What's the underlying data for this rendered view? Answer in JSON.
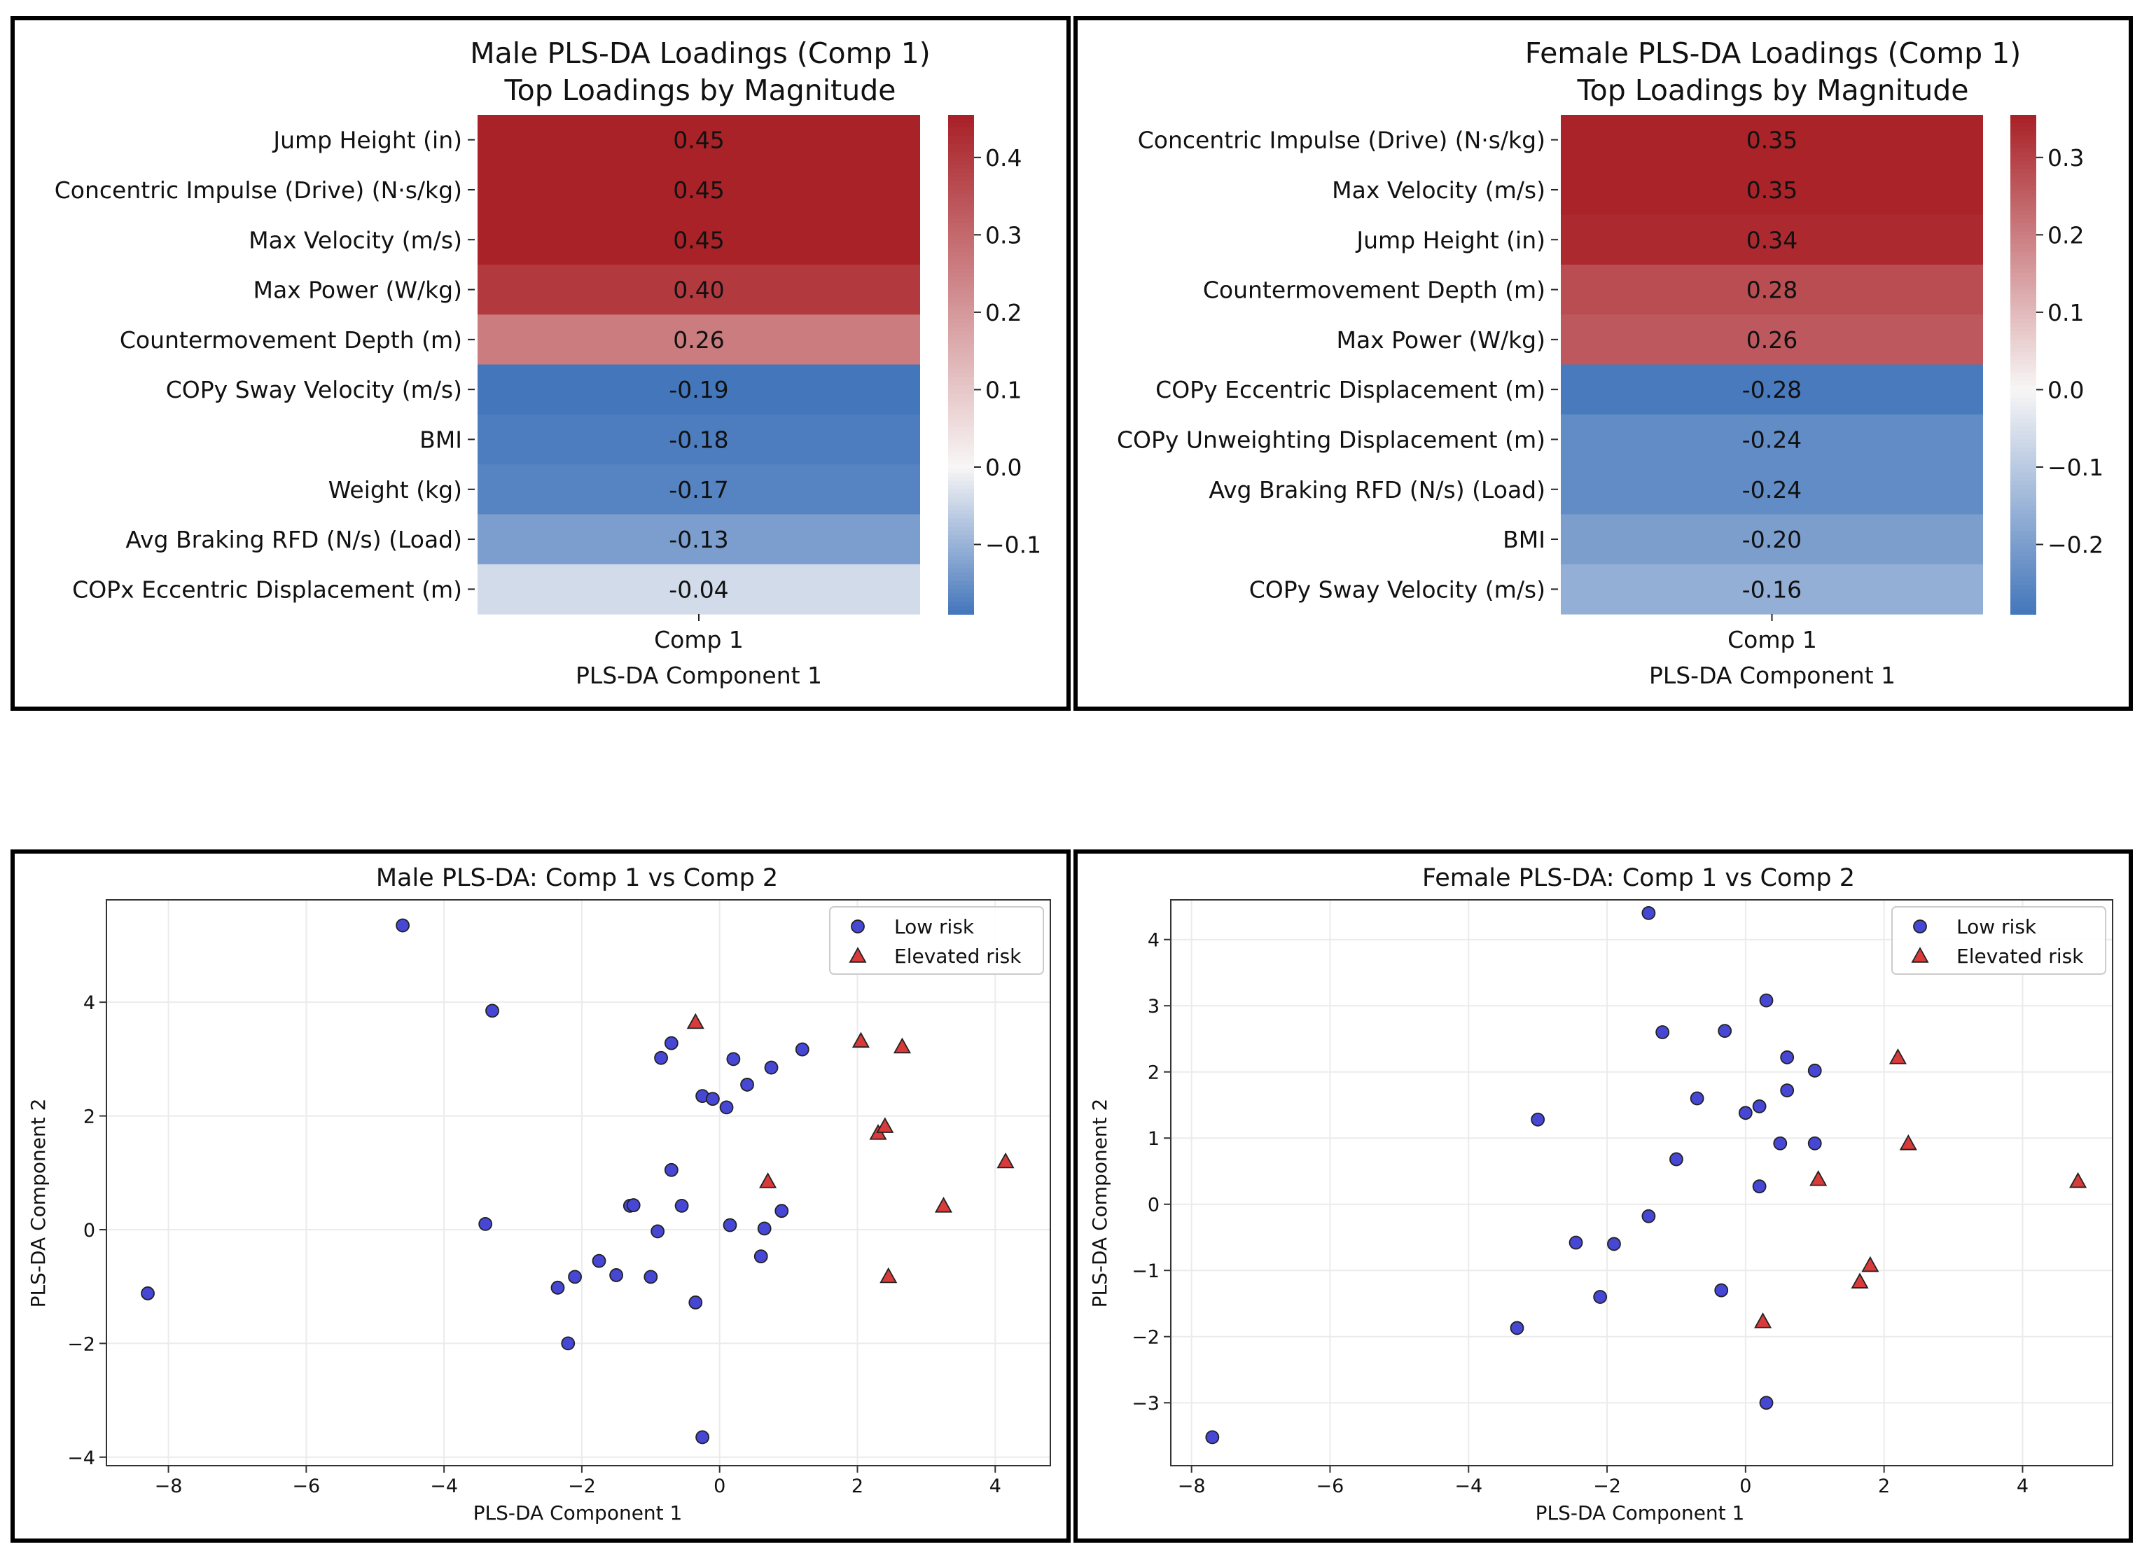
{
  "figure": {
    "background": "#ffffff",
    "frame_color": "#000000"
  },
  "chart_data": [
    {
      "type": "heatmap",
      "title": "Male PLS-DA Loadings (Comp 1)",
      "subtitle": "Top Loadings by Magnitude",
      "xlabel": "PLS-DA Component 1",
      "column_label": "Comp 1",
      "rows": [
        "Jump Height (in)",
        "Concentric Impulse (Drive) (N·s/kg)",
        "Max Velocity (m/s)",
        "Max Power (W/kg)",
        "Countermovement Depth (m)",
        "COPy Sway Velocity (m/s)",
        "BMI",
        "Weight (kg)",
        "Avg Braking RFD (N/s) (Load)",
        "COPx Eccentric Displacement (m)"
      ],
      "values": [
        0.45,
        0.45,
        0.45,
        0.4,
        0.26,
        -0.19,
        -0.18,
        -0.17,
        -0.13,
        -0.04
      ],
      "value_labels": [
        "0.45",
        "0.45",
        "0.45",
        "0.40",
        "0.26",
        "-0.19",
        "-0.18",
        "-0.17",
        "-0.13",
        "-0.04"
      ],
      "colorbar": {
        "vmin": -0.19,
        "vmax": 0.455,
        "center": 0,
        "ticks": [
          -0.1,
          0.0,
          0.1,
          0.2,
          0.3,
          0.4
        ],
        "tick_labels": [
          "−0.1",
          "0.0",
          "0.1",
          "0.2",
          "0.3",
          "0.4"
        ],
        "cmap": "coolwarm-vlag"
      }
    },
    {
      "type": "heatmap",
      "title": "Female PLS-DA Loadings (Comp 1)",
      "subtitle": "Top Loadings by Magnitude",
      "xlabel": "PLS-DA Component 1",
      "column_label": "Comp 1",
      "rows": [
        "Concentric Impulse (Drive) (N·s/kg)",
        "Max Velocity (m/s)",
        "Jump Height (in)",
        "Countermovement Depth (m)",
        "Max Power (W/kg)",
        "COPy Eccentric Displacement (m)",
        "COPy Unweighting Displacement (m)",
        "Avg Braking RFD (N/s) (Load)",
        "BMI",
        "COPy Sway Velocity (m/s)"
      ],
      "values": [
        0.35,
        0.35,
        0.34,
        0.28,
        0.26,
        -0.28,
        -0.24,
        -0.24,
        -0.2,
        -0.16
      ],
      "value_labels": [
        "0.35",
        "0.35",
        "0.34",
        "0.28",
        "0.26",
        "-0.28",
        "-0.24",
        "-0.24",
        "-0.20",
        "-0.16"
      ],
      "colorbar": {
        "vmin": -0.29,
        "vmax": 0.355,
        "center": 0,
        "ticks": [
          -0.2,
          -0.1,
          0.0,
          0.1,
          0.2,
          0.3
        ],
        "tick_labels": [
          "−0.2",
          "−0.1",
          "0.0",
          "0.1",
          "0.2",
          "0.3"
        ],
        "cmap": "coolwarm-vlag"
      }
    },
    {
      "type": "scatter",
      "title": "Male PLS-DA: Comp 1 vs Comp 2",
      "xlabel": "PLS-DA Component 1",
      "ylabel": "PLS-DA Component 2",
      "xlim": [
        -8.9,
        4.8
      ],
      "ylim": [
        -4.15,
        5.8
      ],
      "xticks": [
        -8,
        -6,
        -4,
        -2,
        0,
        2,
        4
      ],
      "yticks": [
        -4,
        -2,
        0,
        2,
        4
      ],
      "grid": true,
      "legend_position": "top-right",
      "series": [
        {
          "name": "Low risk",
          "marker": "circle",
          "color": "#4747d6",
          "points": [
            [
              -4.6,
              5.35
            ],
            [
              -3.3,
              3.85
            ],
            [
              -3.4,
              0.1
            ],
            [
              -8.3,
              -1.12
            ],
            [
              -0.7,
              3.28
            ],
            [
              -0.85,
              3.02
            ],
            [
              -0.25,
              2.35
            ],
            [
              -0.1,
              2.3
            ],
            [
              0.2,
              3.0
            ],
            [
              0.4,
              2.55
            ],
            [
              0.75,
              2.85
            ],
            [
              1.2,
              3.17
            ],
            [
              0.1,
              2.15
            ],
            [
              -0.7,
              1.05
            ],
            [
              -1.3,
              0.42
            ],
            [
              -1.25,
              0.43
            ],
            [
              -0.55,
              0.42
            ],
            [
              -0.9,
              -0.03
            ],
            [
              -1.0,
              -0.83
            ],
            [
              -1.5,
              -0.8
            ],
            [
              -1.75,
              -0.55
            ],
            [
              -2.1,
              -0.83
            ],
            [
              -2.35,
              -1.02
            ],
            [
              -2.2,
              -2.0
            ],
            [
              -0.35,
              -1.28
            ],
            [
              -0.25,
              -3.65
            ],
            [
              0.15,
              0.08
            ],
            [
              0.65,
              0.02
            ],
            [
              0.6,
              -0.47
            ],
            [
              0.9,
              0.33
            ]
          ]
        },
        {
          "name": "Elevated risk",
          "marker": "triangle",
          "color": "#d93a3a",
          "points": [
            [
              -0.35,
              3.65
            ],
            [
              2.05,
              3.32
            ],
            [
              2.65,
              3.22
            ],
            [
              2.3,
              1.7
            ],
            [
              2.4,
              1.82
            ],
            [
              4.15,
              1.2
            ],
            [
              3.25,
              0.42
            ],
            [
              0.7,
              0.85
            ],
            [
              2.45,
              -0.82
            ]
          ]
        }
      ]
    },
    {
      "type": "scatter",
      "title": "Female PLS-DA: Comp 1 vs Comp 2",
      "xlabel": "PLS-DA Component 1",
      "ylabel": "PLS-DA Component 2",
      "xlim": [
        -8.3,
        5.3
      ],
      "ylim": [
        -3.95,
        4.6
      ],
      "xticks": [
        -8,
        -6,
        -4,
        -2,
        0,
        2,
        4
      ],
      "yticks": [
        -3,
        -2,
        -1,
        0,
        1,
        2,
        3,
        4
      ],
      "grid": true,
      "legend_position": "top-right",
      "series": [
        {
          "name": "Low risk",
          "marker": "circle",
          "color": "#4747d6",
          "points": [
            [
              -1.4,
              4.4
            ],
            [
              -3.0,
              1.28
            ],
            [
              -1.2,
              2.6
            ],
            [
              -0.3,
              2.62
            ],
            [
              0.3,
              3.08
            ],
            [
              0.6,
              2.22
            ],
            [
              1.0,
              2.02
            ],
            [
              0.6,
              1.72
            ],
            [
              0.2,
              1.48
            ],
            [
              0.0,
              1.38
            ],
            [
              -0.7,
              1.6
            ],
            [
              0.5,
              0.92
            ],
            [
              1.0,
              0.92
            ],
            [
              -1.0,
              0.68
            ],
            [
              0.2,
              0.27
            ],
            [
              -1.4,
              -0.18
            ],
            [
              -2.45,
              -0.58
            ],
            [
              -1.9,
              -0.6
            ],
            [
              -2.1,
              -1.4
            ],
            [
              -3.3,
              -1.87
            ],
            [
              -0.35,
              -1.3
            ],
            [
              0.3,
              -3.0
            ],
            [
              -7.7,
              -3.52
            ]
          ]
        },
        {
          "name": "Elevated risk",
          "marker": "triangle",
          "color": "#d93a3a",
          "points": [
            [
              2.2,
              2.22
            ],
            [
              2.35,
              0.92
            ],
            [
              1.05,
              0.38
            ],
            [
              4.8,
              0.35
            ],
            [
              1.8,
              -0.92
            ],
            [
              1.65,
              -1.17
            ],
            [
              0.25,
              -1.77
            ]
          ]
        }
      ]
    }
  ]
}
